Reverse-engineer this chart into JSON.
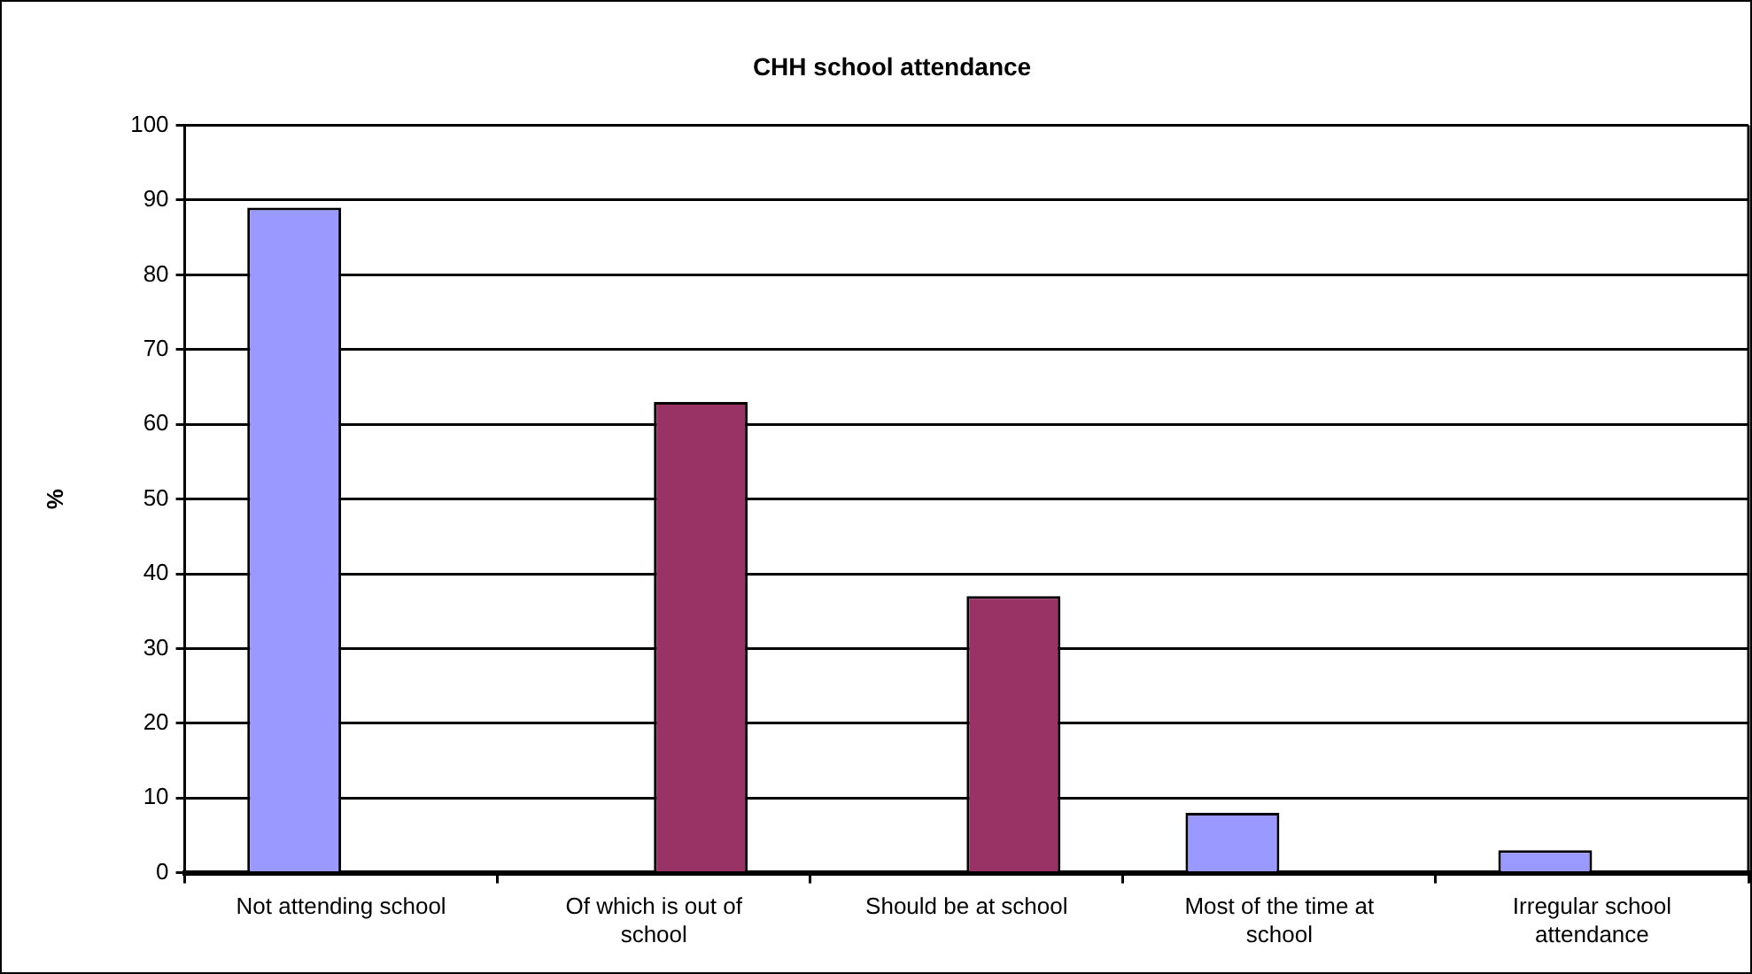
{
  "chart_data": {
    "type": "bar",
    "title": "CHH school attendance",
    "ylabel": "%",
    "categories": [
      "Not attending school",
      "Of which is out of school",
      "Should be at school",
      "Most of the time at school",
      "Irregular school attendance"
    ],
    "series": [
      {
        "color": "#9999ff",
        "values": [
          89,
          null,
          null,
          8,
          3
        ]
      },
      {
        "color": "#993366",
        "values": [
          null,
          63,
          37,
          null,
          null
        ]
      }
    ],
    "ylim": [
      0,
      100
    ],
    "yticks": [
      0,
      10,
      20,
      30,
      40,
      50,
      60,
      70,
      80,
      90,
      100
    ],
    "grid": "y",
    "legend": false
  }
}
